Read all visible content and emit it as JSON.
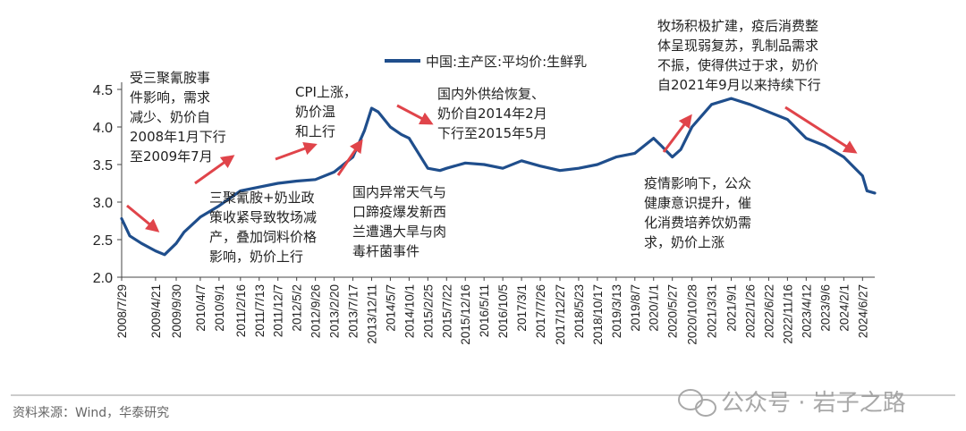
{
  "chart_data": {
    "type": "line",
    "series": [
      {
        "name": "中国:主产区:平均价:生鲜乳",
        "color": "#1f4e8c",
        "x": [
          "2008/7/29",
          "2008/10/1",
          "2009/1/1",
          "2009/4/21",
          "2009/7/1",
          "2009/9/30",
          "2009/12/1",
          "2010/4/7",
          "2010/9/1",
          "2011/2/16",
          "2011/7/13",
          "2011/12/7",
          "2012/5/2",
          "2012/9/26",
          "2013/2/20",
          "2013/7/17",
          "2013/10/15",
          "2013/12/11",
          "2014/2/1",
          "2014/5/7",
          "2014/8/1",
          "2014/10/1",
          "2015/2/25",
          "2015/5/31",
          "2015/7/22",
          "2015/12/16",
          "2016/5/11",
          "2016/10/5",
          "2017/3/1",
          "2017/7/26",
          "2017/12/27",
          "2018/5/23",
          "2018/10/17",
          "2019/3/13",
          "2019/8/7",
          "2020/1/1",
          "2020/3/1",
          "2020/5/27",
          "2020/8/1",
          "2020/10/28",
          "2021/3/31",
          "2021/9/1",
          "2022/1/26",
          "2022/6/22",
          "2022/11/16",
          "2023/4/12",
          "2023/9/6",
          "2024/2/1",
          "2024/6/27",
          "2024/8/1",
          "2024/10/1"
        ],
        "values": [
          2.78,
          2.55,
          2.45,
          2.35,
          2.3,
          2.45,
          2.6,
          2.8,
          2.95,
          3.15,
          3.2,
          3.25,
          3.28,
          3.3,
          3.4,
          3.6,
          3.95,
          4.25,
          4.2,
          4.0,
          3.9,
          3.85,
          3.45,
          3.42,
          3.45,
          3.52,
          3.5,
          3.45,
          3.55,
          3.48,
          3.42,
          3.45,
          3.5,
          3.6,
          3.65,
          3.85,
          3.75,
          3.6,
          3.7,
          4.0,
          4.3,
          4.38,
          4.3,
          4.2,
          4.1,
          3.85,
          3.75,
          3.6,
          3.35,
          3.15,
          3.12
        ]
      }
    ],
    "ylim": [
      2.0,
      4.5
    ],
    "yticks": [
      "2.0",
      "2.5",
      "3.0",
      "3.5",
      "4.0",
      "4.5"
    ],
    "xtick_labels": [
      "2008/7/29",
      "2009/4/21",
      "2009/9/30",
      "2010/4/7",
      "2010/9/1",
      "2011/2/16",
      "2011/7/13",
      "2011/12/7",
      "2012/5/2",
      "2012/9/26",
      "2013/2/20",
      "2013/7/17",
      "2013/12/11",
      "2014/5/7",
      "2014/10/1",
      "2015/2/25",
      "2015/7/22",
      "2015/12/16",
      "2016/5/11",
      "2016/10/5",
      "2017/3/1",
      "2017/7/26",
      "2017/12/27",
      "2018/5/23",
      "2018/10/17",
      "2019/3/13",
      "2019/8/7",
      "2020/1/1",
      "2020/5/27",
      "2020/10/28",
      "2021/3/31",
      "2021/9/1",
      "2022/1/26",
      "2022/6/22",
      "2022/11/16",
      "2023/4/12",
      "2023/9/6",
      "2024/2/1",
      "2024/6/27"
    ],
    "grid": false,
    "legend": "top-center",
    "annotations": [
      {
        "date": "2008/7/29",
        "lines": [
          "受三聚氰胺事",
          "件影响，需求",
          "减少、奶价自",
          "2008年1月下行",
          "至2009年7月"
        ]
      },
      {
        "date": "2009/12/1",
        "lines": [
          "三聚氰胺+奶业政",
          "策收紧导致牧场减",
          "产，叠加饲料价格",
          "影响，奶价上行"
        ]
      },
      {
        "date": "2013/2/20",
        "lines": [
          "CPI上涨，",
          "奶价温",
          "和上行"
        ]
      },
      {
        "date": "2014/5/7",
        "lines": [
          "国内异常天气与",
          "口蹄疫爆发新西",
          "兰遭遇大旱与肉",
          "毒杆菌事件"
        ]
      },
      {
        "date": "2015/12/16",
        "lines": [
          "国内外供给恢复、",
          "奶价自2014年2月",
          "下行至2015年5月"
        ]
      },
      {
        "date": "2020/5/27",
        "lines": [
          "疫情影响下，公众",
          "健康意识提升，催",
          "化消费培养饮奶需",
          "求，奶价上涨"
        ]
      },
      {
        "date": "2020/10/28",
        "lines": [
          "牧场积极扩建，疫后消费整",
          "体呈现弱复苏，乳制品需求",
          "不振，使得供过于求，奶价",
          "自2021年9月以来持续下行"
        ]
      }
    ],
    "arrow_color": "#e0444a"
  },
  "footer": {
    "source": "资料来源：Wind，华泰研究",
    "watermark": "公众号 · 岩子之路"
  }
}
